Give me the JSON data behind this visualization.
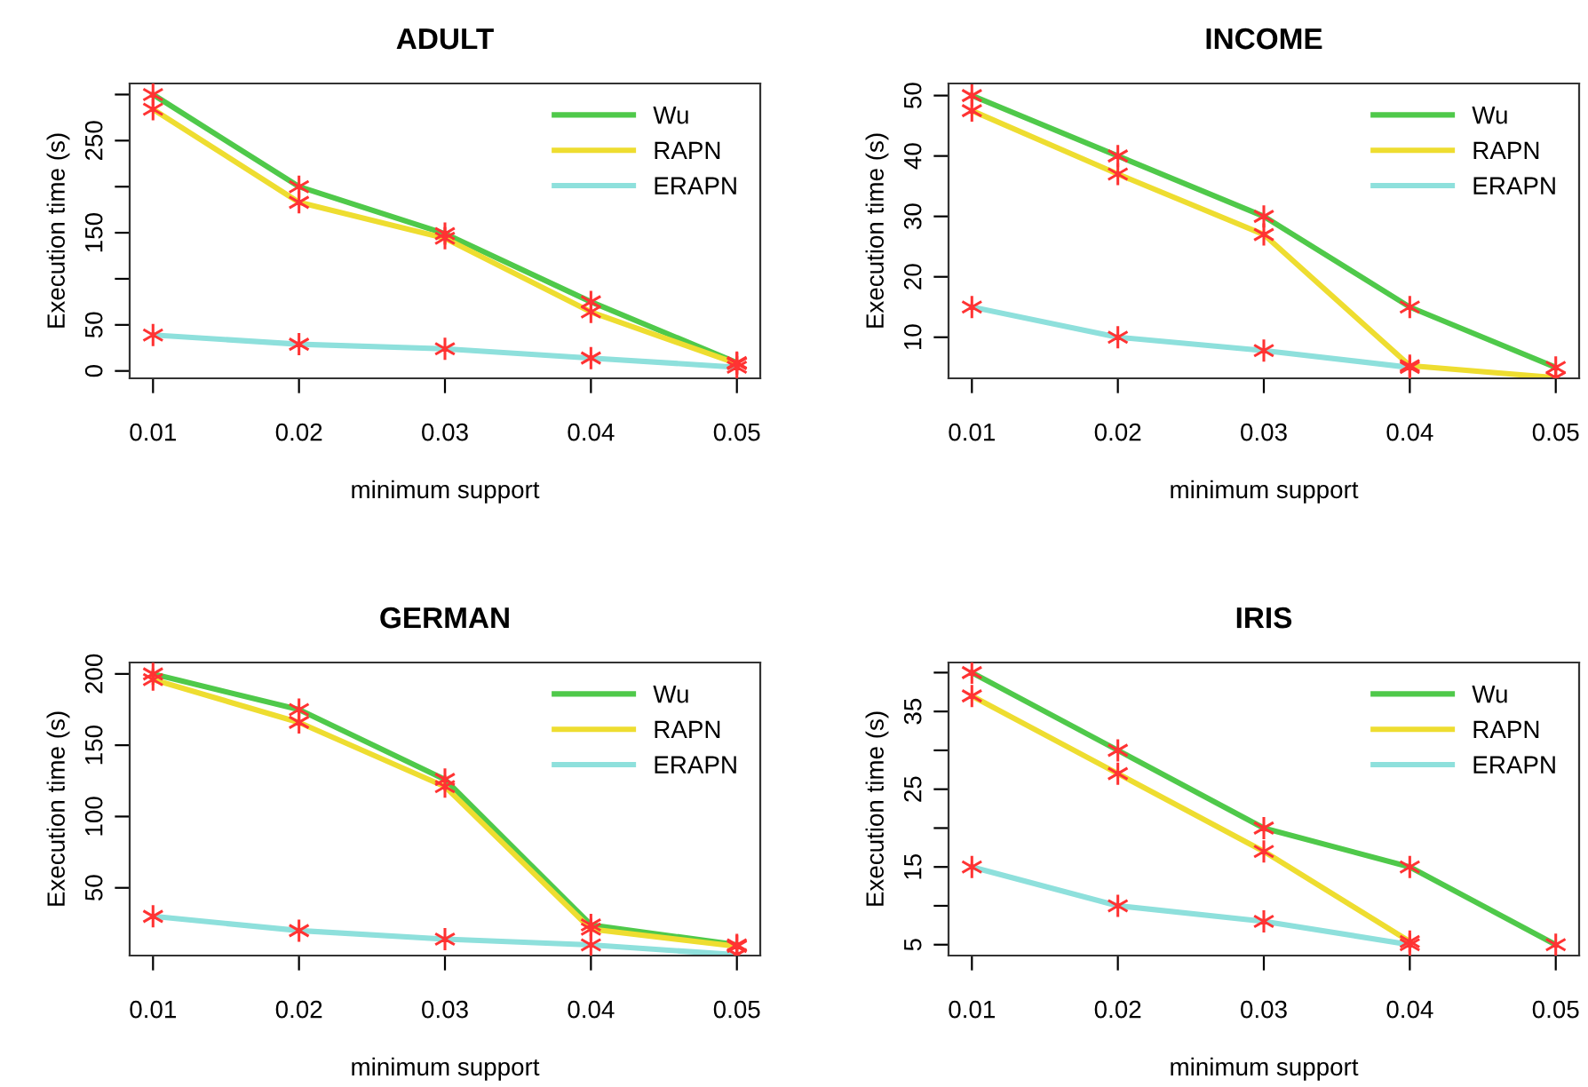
{
  "chart_data": [
    {
      "type": "line",
      "title": "ADULT",
      "xlabel": "minimum support",
      "ylabel": "Execution time (s)",
      "x": [
        0.01,
        0.02,
        0.03,
        0.04,
        0.05
      ],
      "xlim": [
        0.0084,
        0.0516
      ],
      "xticks": [
        {
          "value": 0.01,
          "label": "0.01"
        },
        {
          "value": 0.02,
          "label": "0.02"
        },
        {
          "value": 0.03,
          "label": "0.03"
        },
        {
          "value": 0.04,
          "label": "0.04"
        },
        {
          "value": 0.05,
          "label": "0.05"
        }
      ],
      "ylim": [
        -8,
        312
      ],
      "yticks": [
        0,
        50,
        {
          "value": 100,
          "label": null
        },
        150,
        {
          "value": 200,
          "label": null
        },
        250,
        {
          "value": 300,
          "label": null
        }
      ],
      "grid": false,
      "legend": "top right",
      "marker": "cross",
      "line_style": "solid",
      "series": [
        {
          "name": "Wu",
          "color": "#4fc94a",
          "colors": [
            "#ff3333",
            "#ff3333",
            "#ff3333",
            "#ff3333",
            "#ff3333"
          ],
          "values": [
            300,
            200,
            149,
            75,
            9
          ]
        },
        {
          "name": "RAPN",
          "color": "#eedd30",
          "colors": [
            "#ff3333",
            "#ff3333",
            "#ff3333",
            "#ff3333",
            "#ff3333"
          ],
          "values": [
            284,
            183,
            144,
            64,
            8
          ]
        },
        {
          "name": "ERAPN",
          "color": "#8ee0dc",
          "colors": [
            "#ff3333",
            "#ff3333",
            "#ff3333",
            "#ff3333",
            "#ff3333"
          ],
          "values": [
            39,
            29,
            24,
            14,
            4
          ]
        }
      ]
    },
    {
      "type": "line",
      "title": "INCOME",
      "xlabel": "minimum support",
      "ylabel": "Execution time (s)",
      "x": [
        0.01,
        0.02,
        0.03,
        0.04,
        0.05
      ],
      "xlim": [
        0.0084,
        0.0516
      ],
      "xticks": [
        {
          "value": 0.01,
          "label": "0.01"
        },
        {
          "value": 0.02,
          "label": "0.02"
        },
        {
          "value": 0.03,
          "label": "0.03"
        },
        {
          "value": 0.04,
          "label": "0.04"
        },
        {
          "value": 0.05,
          "label": "0.05"
        }
      ],
      "ylim": [
        3.2,
        52
      ],
      "yticks": [
        10,
        20,
        30,
        40,
        50
      ],
      "grid": false,
      "legend": "top right",
      "marker": "cross",
      "line_style": "solid",
      "series": [
        {
          "name": "Wu",
          "color": "#4fc94a",
          "colors": [
            "#ff3333",
            "#ff3333",
            "#ff3333",
            "#ff3333",
            "#ff3333"
          ],
          "values": [
            50,
            40,
            30,
            15,
            5
          ]
        },
        {
          "name": "RAPN",
          "color": "#eedd30",
          "colors": [
            "#ff3333",
            "#ff3333",
            "#ff3333",
            "#ff3333",
            "#ff3333"
          ],
          "values": [
            47.5,
            37,
            27,
            5.3,
            3.3
          ]
        },
        {
          "name": "ERAPN",
          "color": "#8ee0dc",
          "colors": [
            "#ff3333",
            "#ff3333",
            "#ff3333",
            "#ff3333",
            "#ff3333"
          ],
          "values": [
            15,
            10,
            7.8,
            5,
            null
          ]
        }
      ]
    },
    {
      "type": "line",
      "title": "GERMAN",
      "xlabel": "minimum support",
      "ylabel": "Execution time (s)",
      "x": [
        0.01,
        0.02,
        0.03,
        0.04,
        0.05
      ],
      "xlim": [
        0.0084,
        0.0516
      ],
      "xticks": [
        {
          "value": 0.01,
          "label": "0.01"
        },
        {
          "value": 0.02,
          "label": "0.02"
        },
        {
          "value": 0.03,
          "label": "0.03"
        },
        {
          "value": 0.04,
          "label": "0.04"
        },
        {
          "value": 0.05,
          "label": "0.05"
        }
      ],
      "ylim": [
        2.5,
        208
      ],
      "yticks": [
        50,
        100,
        150,
        200
      ],
      "grid": false,
      "legend": "top right",
      "marker": "cross",
      "line_style": "solid",
      "series": [
        {
          "name": "Wu",
          "color": "#4fc94a",
          "colors": [
            "#ff3333",
            "#ff3333",
            "#ff3333",
            "#ff3333",
            "#ff3333"
          ],
          "values": [
            200,
            175,
            126,
            24,
            10
          ]
        },
        {
          "name": "RAPN",
          "color": "#eedd30",
          "colors": [
            "#ff3333",
            "#ff3333",
            "#ff3333",
            "#ff3333",
            "#ff3333"
          ],
          "values": [
            196,
            166,
            121,
            21,
            9
          ]
        },
        {
          "name": "ERAPN",
          "color": "#8ee0dc",
          "colors": [
            "#ff3333",
            "#ff3333",
            "#ff3333",
            "#ff3333",
            "#ff3333"
          ],
          "values": [
            30,
            20,
            14,
            10,
            3
          ]
        }
      ]
    },
    {
      "type": "line",
      "title": "IRIS",
      "xlabel": "minimum support",
      "ylabel": "Execution time (s)",
      "x": [
        0.01,
        0.02,
        0.03,
        0.04,
        0.05
      ],
      "xlim": [
        0.0084,
        0.0516
      ],
      "xticks": [
        {
          "value": 0.01,
          "label": "0.01"
        },
        {
          "value": 0.02,
          "label": "0.02"
        },
        {
          "value": 0.03,
          "label": "0.03"
        },
        {
          "value": 0.04,
          "label": "0.04"
        },
        {
          "value": 0.05,
          "label": "0.05"
        }
      ],
      "ylim": [
        3.6,
        41.3
      ],
      "yticks": [
        5,
        {
          "value": 10,
          "label": null
        },
        15,
        {
          "value": 20,
          "label": null
        },
        25,
        {
          "value": 30,
          "label": null
        },
        35,
        {
          "value": 40,
          "label": null
        }
      ],
      "grid": false,
      "legend": "top right",
      "marker": "cross",
      "line_style": "solid",
      "series": [
        {
          "name": "Wu",
          "color": "#4fc94a",
          "colors": [
            "#ff3333",
            "#ff3333",
            "#ff3333",
            "#ff3333",
            "#ff3333"
          ],
          "values": [
            40,
            30,
            20,
            15,
            5
          ]
        },
        {
          "name": "RAPN",
          "color": "#eedd30",
          "colors": [
            "#ff3333",
            "#ff3333",
            "#ff3333",
            "#ff3333",
            "#ff3333"
          ],
          "values": [
            37,
            27,
            17,
            5.4,
            null
          ]
        },
        {
          "name": "ERAPN",
          "color": "#8ee0dc",
          "colors": [
            "#ff3333",
            "#ff3333",
            "#ff3333",
            "#ff3333",
            "#ff3333"
          ],
          "values": [
            15,
            10,
            8,
            5,
            null
          ]
        }
      ]
    }
  ]
}
